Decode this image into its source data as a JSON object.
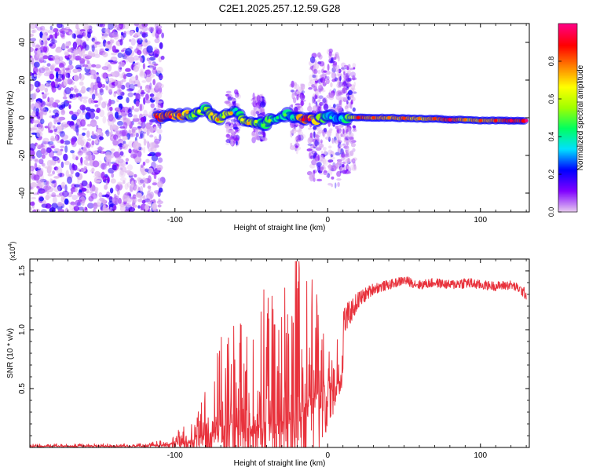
{
  "title": "C2E1.2025.257.12.59.G28",
  "chart_data": [
    {
      "type": "heatmap",
      "name": "spectrogram",
      "xlabel": "Height of straight line (km)",
      "ylabel": "Frequency (Hz)",
      "xlim": [
        -195,
        132
      ],
      "ylim": [
        -50,
        50
      ],
      "xticks": [
        -100,
        0,
        100
      ],
      "xtick_labels": [
        "-100",
        "0",
        "100"
      ],
      "yticks": [
        -40,
        -20,
        0,
        20,
        40
      ],
      "ytick_labels": [
        "-40",
        "-20",
        "0",
        "20",
        "40"
      ],
      "noise_region_km": [
        -195,
        -108
      ],
      "dense_ridge": [
        {
          "x": -112,
          "f": 0.5,
          "a": 0.85
        },
        {
          "x": -103,
          "f": 0.5,
          "a": 0.9
        },
        {
          "x": -97,
          "f": 1.5,
          "a": 0.8
        },
        {
          "x": -92,
          "f": 3.0,
          "a": 0.7
        },
        {
          "x": -88,
          "f": 1.0,
          "a": 0.5
        },
        {
          "x": -84,
          "f": 3.5,
          "a": 0.6
        },
        {
          "x": -80,
          "f": 5.0,
          "a": 0.5
        },
        {
          "x": -76,
          "f": 2.0,
          "a": 0.65
        },
        {
          "x": -72,
          "f": -1.0,
          "a": 0.75
        },
        {
          "x": -68,
          "f": 0.5,
          "a": 0.55
        },
        {
          "x": -63,
          "f": 2.5,
          "a": 0.7
        },
        {
          "x": -60,
          "f": 4.5,
          "a": 0.35
        },
        {
          "x": -56,
          "f": -1.0,
          "a": 0.6
        },
        {
          "x": -52,
          "f": -3.0,
          "a": 0.7
        },
        {
          "x": -47,
          "f": -2.0,
          "a": 0.55
        },
        {
          "x": -42,
          "f": -4.0,
          "a": 0.45
        },
        {
          "x": -38,
          "f": -1.5,
          "a": 0.5
        },
        {
          "x": -33,
          "f": 0.0,
          "a": 0.4
        },
        {
          "x": -28,
          "f": 1.5,
          "a": 0.45
        },
        {
          "x": -23,
          "f": 0.5,
          "a": 0.35
        },
        {
          "x": -16,
          "f": -1.0,
          "a": 0.85
        },
        {
          "x": -12,
          "f": -1.0,
          "a": 0.9
        },
        {
          "x": 2,
          "f": 0.0,
          "a": 0.35
        },
        {
          "x": 9,
          "f": 0.0,
          "a": 0.3
        },
        {
          "x": 20,
          "f": 0.0,
          "a": 0.85
        },
        {
          "x": 30,
          "f": 0.0,
          "a": 0.8
        },
        {
          "x": 40,
          "f": 0.0,
          "a": 0.75
        },
        {
          "x": 50,
          "f": -0.3,
          "a": 0.8
        },
        {
          "x": 60,
          "f": -0.5,
          "a": 0.75
        },
        {
          "x": 70,
          "f": -0.5,
          "a": 0.8
        },
        {
          "x": 80,
          "f": -1.0,
          "a": 0.9
        },
        {
          "x": 90,
          "f": -1.0,
          "a": 0.75
        },
        {
          "x": 100,
          "f": -1.5,
          "a": 0.8
        },
        {
          "x": 110,
          "f": -1.5,
          "a": 0.85
        },
        {
          "x": 120,
          "f": -1.5,
          "a": 0.9
        },
        {
          "x": 130,
          "f": -1.5,
          "a": 0.95
        }
      ]
    },
    {
      "type": "colorbar",
      "name": "colorbar",
      "label": "Normalized spectral amplitude",
      "range": [
        0,
        1
      ],
      "ticks": [
        0.0,
        0.2,
        0.4,
        0.6,
        0.8
      ],
      "tick_labels": [
        "0.0",
        "0.2",
        "0.4",
        "0.6",
        "0.8"
      ],
      "colormap": [
        "#e6c8f0",
        "#8000ff",
        "#0000ff",
        "#00e0ff",
        "#00ff60",
        "#a0ff00",
        "#ffff00",
        "#ff8000",
        "#ff0000",
        "#ff0080"
      ]
    },
    {
      "type": "line",
      "name": "snr",
      "xlabel": "Height of straight line (km)",
      "ylabel": "SNR (10 * v/v)",
      "scale_label": "(x10",
      "scale_exp": "4",
      "scale_close": ")",
      "xlim": [
        -195,
        132
      ],
      "ylim": [
        0,
        1.6
      ],
      "xticks": [
        -100,
        0,
        100
      ],
      "xtick_labels": [
        "-100",
        "0",
        "100"
      ],
      "yticks": [
        0.5,
        1.0,
        1.5
      ],
      "ytick_labels": [
        "0.5",
        "1.0",
        "1.5"
      ],
      "series": [
        {
          "name": "SNR",
          "color": "#e8323c",
          "x": [
            -195,
            -180,
            -160,
            -140,
            -120,
            -110,
            -100,
            -90,
            -85,
            -80,
            -75,
            -70,
            -65,
            -60,
            -55,
            -50,
            -45,
            -40,
            -35,
            -30,
            -25,
            -20,
            -15,
            -10,
            -5,
            0,
            5,
            10,
            15,
            20,
            25,
            30,
            40,
            50,
            60,
            70,
            80,
            90,
            100,
            110,
            120,
            125,
            130
          ],
          "y": [
            0.02,
            0.02,
            0.02,
            0.02,
            0.02,
            0.03,
            0.06,
            0.1,
            0.15,
            0.2,
            0.25,
            0.3,
            0.35,
            0.35,
            0.3,
            0.3,
            0.35,
            0.4,
            0.35,
            0.4,
            0.45,
            0.55,
            0.7,
            0.8,
            0.85,
            0.9,
            0.95,
            1.05,
            1.15,
            1.25,
            1.3,
            1.35,
            1.38,
            1.42,
            1.38,
            1.4,
            1.38,
            1.4,
            1.38,
            1.37,
            1.38,
            1.35,
            1.3
          ],
          "noise_amplitude": [
            0.01,
            0.01,
            0.01,
            0.01,
            0.01,
            0.02,
            0.04,
            0.08,
            0.12,
            0.18,
            0.25,
            0.35,
            0.4,
            0.45,
            0.4,
            0.35,
            0.45,
            0.55,
            0.5,
            0.55,
            0.6,
            0.7,
            0.65,
            0.45,
            0.35,
            0.25,
            0.2,
            0.15,
            0.1,
            0.08,
            0.06,
            0.05,
            0.04,
            0.04,
            0.04,
            0.04,
            0.04,
            0.05,
            0.04,
            0.04,
            0.04,
            0.04,
            0.05
          ]
        }
      ]
    }
  ]
}
